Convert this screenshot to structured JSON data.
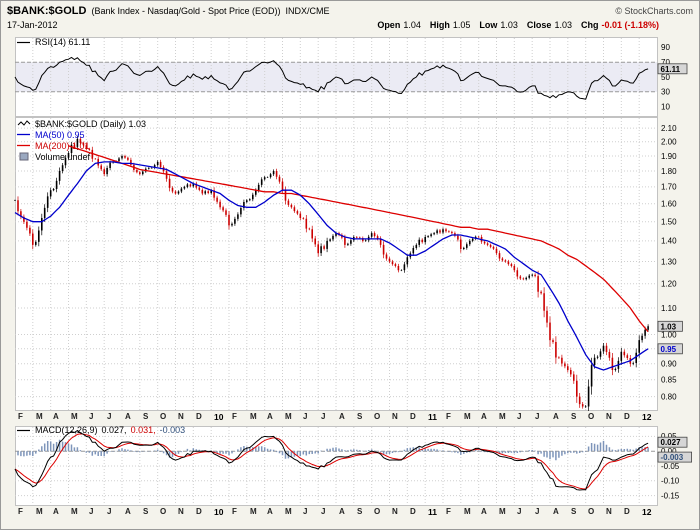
{
  "header": {
    "symbol": "$BANK:$GOLD",
    "name": "(Bank Index - Nasdaq/Gold - Spot Price (EOD))",
    "exchange": "INDX/CME",
    "copyright": "© StockCharts.com",
    "date": "17-Jan-2012",
    "quote": {
      "open_label": "Open",
      "open": "1.04",
      "high_label": "High",
      "high": "1.05",
      "low_label": "Low",
      "low": "1.03",
      "close_label": "Close",
      "close": "1.03",
      "chg_label": "Chg",
      "chg": "-0.01 (-1.18%)"
    }
  },
  "rsi_panel": {
    "legend": "RSI(14) 61.11"
  },
  "main_panel": {
    "legend_symbol": "$BANK:$GOLD (Daily) 1.03",
    "legend_ma50": "MA(50) 0.95",
    "legend_ma200": "MA(200) 1.01",
    "legend_volume": "Volume undef"
  },
  "macd_panel": {
    "name": "MACD(12,26,9)",
    "value_macd": "0.027,",
    "value_signal": "0.031,",
    "value_hist": "-0.003"
  },
  "colors": {
    "ma50": "#0000cc",
    "ma200": "#dd0000",
    "candle_up": "#000000",
    "candle_down": "#cc0000",
    "macd_hist": "#7e95ba",
    "rsi_band": "#ebebf4"
  },
  "chart_data": {
    "type": "line",
    "subtype": "daily-candlesticks-with-indicators",
    "title": "$BANK:$GOLD (Bank Index - Nasdaq/Gold - Spot Price (EOD)) INDX/CME",
    "x_axis": {
      "start": "Feb-2009",
      "end": "17-Jan-2012",
      "months": 36,
      "sampling": "2 samples per month (values estimated from chart)",
      "labels": [
        "F",
        "M",
        "A",
        "M",
        "J",
        "J",
        "A",
        "S",
        "O",
        "N",
        "D",
        "10",
        "F",
        "M",
        "A",
        "M",
        "J",
        "J",
        "A",
        "S",
        "O",
        "N",
        "D",
        "11",
        "F",
        "M",
        "A",
        "M",
        "J",
        "J",
        "A",
        "S",
        "O",
        "N",
        "D",
        "12"
      ],
      "year_label_indexes": [
        11,
        23,
        35
      ]
    },
    "rsi": {
      "period": 14,
      "last": 61.11,
      "last_label": "61.11",
      "ylim": [
        0,
        100
      ],
      "ticks": [
        90,
        70,
        50,
        30,
        10
      ],
      "overbought": 70,
      "oversold": 30,
      "values": [
        50,
        38,
        32,
        52,
        64,
        70,
        74,
        76,
        66,
        58,
        45,
        58,
        68,
        60,
        52,
        58,
        64,
        48,
        38,
        46,
        54,
        47,
        52,
        42,
        33,
        44,
        58,
        64,
        70,
        72,
        58,
        44,
        40,
        36,
        30,
        42,
        50,
        41,
        46,
        44,
        50,
        40,
        32,
        28,
        40,
        50,
        58,
        62,
        66,
        60,
        45,
        52,
        56,
        48,
        42,
        38,
        34,
        30,
        38,
        28,
        22,
        26,
        30,
        24,
        20,
        45,
        52,
        38,
        46,
        42,
        55,
        61
      ]
    },
    "price": {
      "scale": "log",
      "ylim": [
        0.765,
        2.17
      ],
      "ticks": [
        2.1,
        2.0,
        1.9,
        1.8,
        1.7,
        1.6,
        1.5,
        1.4,
        1.3,
        1.2,
        1.1,
        1.0,
        0.95,
        0.9,
        0.85,
        0.8
      ],
      "last": 1.03,
      "last_label": "1.03",
      "ma50_last": 0.95,
      "ma50_label": "0.95",
      "ma200_last": 1.01,
      "close": [
        1.62,
        1.5,
        1.38,
        1.52,
        1.68,
        1.8,
        1.92,
        2.02,
        1.95,
        1.88,
        1.78,
        1.86,
        1.9,
        1.84,
        1.78,
        1.82,
        1.86,
        1.75,
        1.66,
        1.7,
        1.72,
        1.66,
        1.68,
        1.58,
        1.48,
        1.54,
        1.62,
        1.68,
        1.76,
        1.8,
        1.68,
        1.58,
        1.52,
        1.46,
        1.34,
        1.4,
        1.44,
        1.38,
        1.42,
        1.4,
        1.44,
        1.38,
        1.3,
        1.26,
        1.32,
        1.38,
        1.42,
        1.44,
        1.46,
        1.44,
        1.36,
        1.4,
        1.42,
        1.38,
        1.34,
        1.3,
        1.26,
        1.22,
        1.24,
        1.16,
        0.98,
        0.92,
        0.88,
        0.8,
        0.76,
        0.92,
        0.96,
        0.88,
        0.94,
        0.9,
        0.98,
        1.03
      ],
      "ma50": [
        1.55,
        1.52,
        1.5,
        1.5,
        1.53,
        1.58,
        1.65,
        1.72,
        1.8,
        1.85,
        1.86,
        1.86,
        1.85,
        1.85,
        1.84,
        1.83,
        1.82,
        1.81,
        1.78,
        1.75,
        1.72,
        1.7,
        1.68,
        1.66,
        1.62,
        1.59,
        1.58,
        1.58,
        1.61,
        1.65,
        1.68,
        1.68,
        1.65,
        1.6,
        1.54,
        1.48,
        1.44,
        1.42,
        1.41,
        1.41,
        1.41,
        1.41,
        1.39,
        1.36,
        1.33,
        1.33,
        1.35,
        1.38,
        1.41,
        1.43,
        1.43,
        1.42,
        1.41,
        1.4,
        1.38,
        1.36,
        1.32,
        1.29,
        1.26,
        1.24,
        1.18,
        1.12,
        1.05,
        0.99,
        0.93,
        0.89,
        0.88,
        0.89,
        0.9,
        0.91,
        0.93,
        0.95
      ],
      "ma200": [
        null,
        null,
        null,
        null,
        null,
        null,
        1.97,
        1.95,
        1.93,
        1.91,
        1.89,
        1.87,
        1.85,
        1.83,
        1.81,
        1.8,
        1.79,
        1.78,
        1.77,
        1.76,
        1.75,
        1.74,
        1.73,
        1.72,
        1.71,
        1.7,
        1.69,
        1.68,
        1.67,
        1.67,
        1.66,
        1.66,
        1.65,
        1.64,
        1.63,
        1.62,
        1.61,
        1.6,
        1.59,
        1.58,
        1.57,
        1.56,
        1.55,
        1.54,
        1.53,
        1.52,
        1.51,
        1.5,
        1.49,
        1.48,
        1.47,
        1.47,
        1.46,
        1.46,
        1.45,
        1.44,
        1.43,
        1.42,
        1.41,
        1.4,
        1.38,
        1.36,
        1.33,
        1.31,
        1.28,
        1.25,
        1.22,
        1.18,
        1.14,
        1.1,
        1.05,
        1.01
      ]
    },
    "macd": {
      "params": [
        12,
        26,
        9
      ],
      "last_macd": 0.027,
      "macd_label": "0.027",
      "last_signal": 0.031,
      "last_hist": -0.003,
      "hist_label": "-0.003",
      "ylim": [
        -0.175,
        0.075
      ],
      "ticks": [
        0.05,
        0.0,
        -0.05,
        -0.1,
        -0.15
      ],
      "macd": [
        -0.06,
        -0.1,
        -0.12,
        -0.08,
        -0.02,
        0.03,
        0.06,
        0.07,
        0.05,
        0.03,
        0.0,
        0.01,
        0.03,
        0.03,
        0.02,
        0.02,
        0.03,
        0.0,
        -0.03,
        -0.02,
        0.0,
        0.0,
        0.0,
        -0.02,
        -0.04,
        -0.02,
        0.01,
        0.03,
        0.05,
        0.05,
        0.02,
        -0.02,
        -0.04,
        -0.05,
        -0.06,
        -0.04,
        -0.02,
        -0.02,
        -0.01,
        -0.01,
        0.0,
        -0.01,
        -0.03,
        -0.03,
        -0.01,
        0.01,
        0.02,
        0.03,
        0.03,
        0.02,
        0.0,
        0.0,
        0.01,
        0.0,
        -0.01,
        -0.02,
        -0.03,
        -0.03,
        -0.02,
        -0.04,
        -0.09,
        -0.12,
        -0.12,
        -0.13,
        -0.13,
        -0.07,
        -0.02,
        -0.03,
        -0.02,
        -0.01,
        0.01,
        0.027
      ],
      "signal_rule": "ema smoothing of macd series"
    },
    "volume": "undef"
  }
}
